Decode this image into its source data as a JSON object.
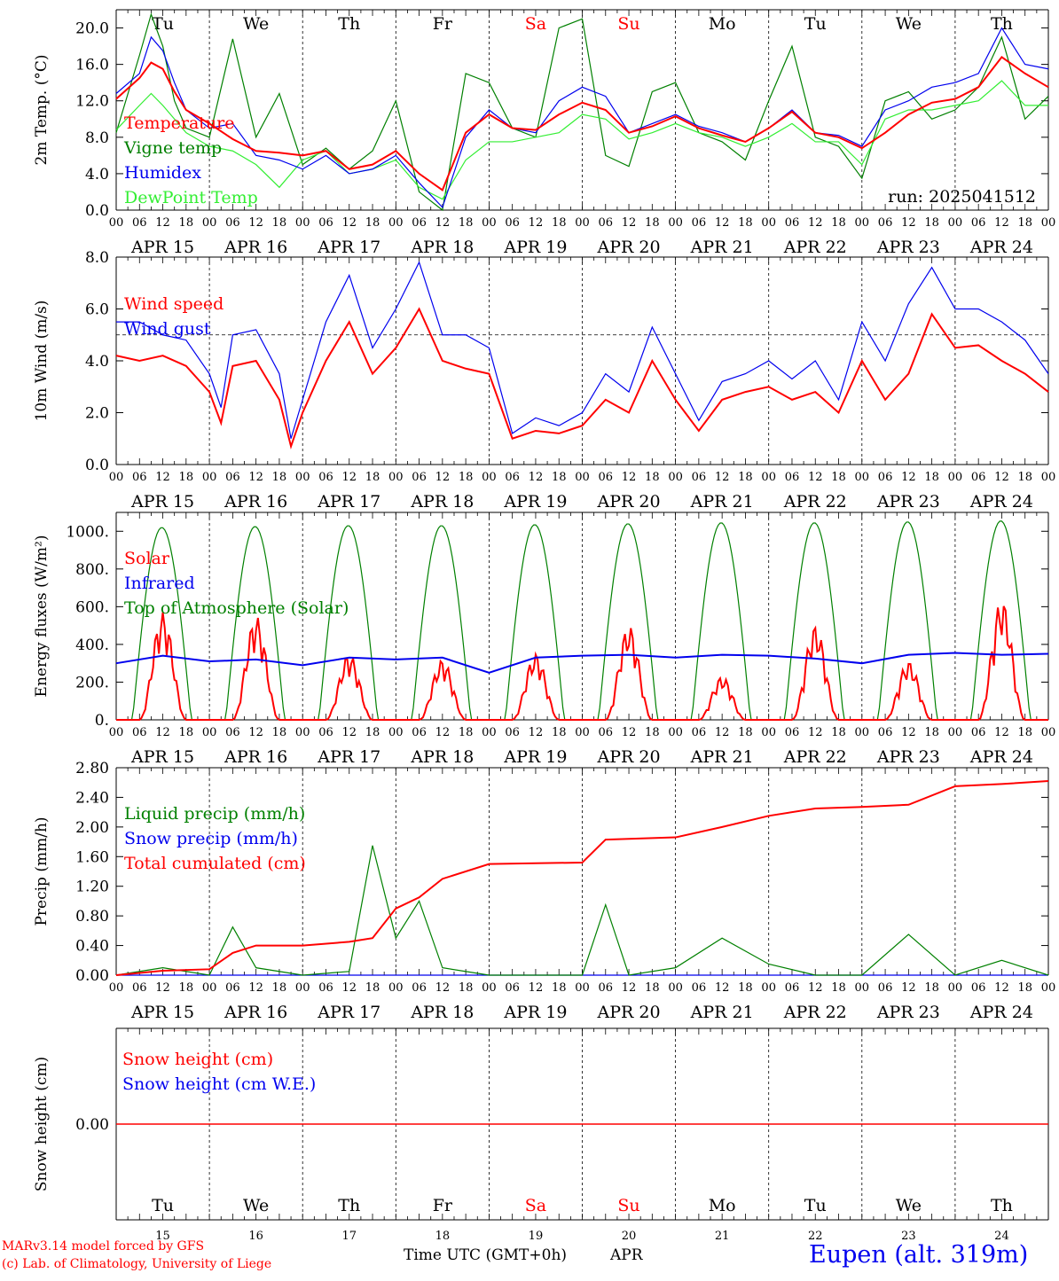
{
  "colors": {
    "red": "#ff0000",
    "green": "#008000",
    "lightgreen": "#33ee33",
    "blue": "#0000ee",
    "black": "#000000",
    "ref": "#000000"
  },
  "days": [
    "Tu",
    "We",
    "Th",
    "Fr",
    "Sa",
    "Su",
    "Mo",
    "Tu",
    "We",
    "Th"
  ],
  "weekend_days": [
    "Sa",
    "Su"
  ],
  "dates": [
    "APR 15",
    "APR 16",
    "APR 17",
    "APR 18",
    "APR 19",
    "APR 20",
    "APR 21",
    "APR 22",
    "APR 23",
    "APR 24"
  ],
  "day_numbers": [
    "15",
    "16",
    "17",
    "18",
    "19",
    "20",
    "21",
    "22",
    "23",
    "24"
  ],
  "hour_ticks": [
    "00",
    "06",
    "12",
    "18"
  ],
  "hour_end": "00",
  "footer": {
    "model_line": "MARv3.14 model forced by GFS",
    "lab_line": "(c) Lab. of Climatology, University of Liege",
    "xlabel": "Time UTC (GMT+0h)",
    "month": "APR",
    "station": "Eupen (alt. 319m)"
  },
  "chart_data": [
    {
      "type": "line",
      "ylabel": "2m Temp. (°C)",
      "ylim": [
        0,
        22
      ],
      "yticks": [
        "0.0",
        "4.0",
        "8.0",
        "12.0",
        "16.0",
        "20.0"
      ],
      "note": "run: 2025041512",
      "x_hours": [
        0,
        6,
        9,
        12,
        15,
        18,
        24,
        30,
        36,
        42,
        48,
        54,
        60,
        66,
        72,
        78,
        84,
        90,
        96,
        102,
        108,
        114,
        120,
        126,
        132,
        138,
        144,
        150,
        156,
        162,
        168,
        174,
        180,
        186,
        192,
        198,
        204,
        210,
        216,
        222,
        228,
        234,
        240
      ],
      "series": [
        {
          "name": "Temperature",
          "color": "#ff0000",
          "values": [
            12.2,
            14.5,
            16.2,
            15.5,
            13.0,
            11.0,
            9.5,
            7.8,
            6.5,
            6.3,
            6.0,
            6.5,
            4.5,
            5.0,
            6.5,
            4.0,
            2.2,
            8.5,
            10.5,
            9.0,
            8.8,
            10.5,
            11.8,
            11.0,
            8.5,
            9.2,
            10.3,
            9.0,
            8.2,
            7.5,
            9.0,
            10.8,
            8.5,
            8.0,
            6.8,
            8.5,
            10.5,
            11.8,
            12.2,
            13.5,
            16.8,
            15.0,
            13.5
          ]
        },
        {
          "name": "Vigne temp",
          "color": "#008000",
          "values": [
            8.5,
            17.0,
            21.5,
            18.0,
            12.0,
            9.0,
            8.0,
            18.8,
            8.0,
            12.8,
            5.0,
            6.8,
            4.5,
            6.5,
            12.0,
            2.0,
            -0.5,
            15.0,
            14.0,
            9.0,
            8.0,
            20.0,
            21.0,
            6.0,
            4.8,
            13.0,
            14.0,
            8.5,
            7.5,
            5.5,
            12.0,
            18.0,
            8.0,
            7.0,
            3.5,
            12.0,
            13.0,
            10.0,
            11.0,
            13.5,
            19.0,
            10.0,
            12.5
          ]
        },
        {
          "name": "Humidex",
          "color": "#0000ee",
          "values": [
            12.8,
            15.0,
            19.0,
            17.5,
            14.0,
            11.0,
            9.0,
            9.5,
            6.0,
            5.5,
            4.5,
            6.0,
            4.0,
            4.5,
            6.0,
            3.0,
            0.3,
            8.0,
            11.0,
            9.0,
            8.5,
            12.0,
            13.5,
            12.5,
            8.5,
            9.5,
            10.5,
            9.2,
            8.5,
            7.5,
            9.0,
            11.0,
            8.5,
            8.2,
            7.0,
            11.0,
            12.0,
            13.5,
            14.0,
            15.0,
            20.0,
            16.0,
            15.5
          ]
        },
        {
          "name": "DewPoint Temp",
          "color": "#33ee33",
          "values": [
            8.8,
            11.5,
            12.8,
            11.5,
            10.0,
            8.5,
            7.0,
            6.5,
            5.0,
            2.5,
            5.5,
            6.5,
            4.0,
            4.5,
            5.5,
            2.5,
            1.2,
            5.5,
            7.5,
            7.5,
            8.0,
            8.5,
            10.5,
            10.0,
            7.8,
            8.5,
            9.5,
            8.5,
            8.0,
            7.0,
            8.0,
            9.5,
            7.5,
            7.5,
            5.0,
            10.0,
            11.0,
            11.0,
            11.5,
            12.0,
            14.2,
            11.5,
            11.5
          ]
        }
      ]
    },
    {
      "type": "line",
      "ylabel": "10m Wind (m/s)",
      "ylim": [
        0,
        8
      ],
      "yticks": [
        "0.0",
        "2.0",
        "4.0",
        "6.0",
        "8.0"
      ],
      "ref_line": 5.0,
      "x_hours": [
        0,
        6,
        12,
        18,
        24,
        27,
        30,
        36,
        42,
        45,
        48,
        54,
        60,
        66,
        72,
        78,
        84,
        90,
        96,
        102,
        108,
        114,
        120,
        126,
        132,
        138,
        144,
        150,
        156,
        162,
        168,
        174,
        180,
        186,
        192,
        198,
        204,
        210,
        216,
        222,
        228,
        234,
        240
      ],
      "series": [
        {
          "name": "Wind speed",
          "color": "#ff0000",
          "values": [
            4.2,
            4.0,
            4.2,
            3.8,
            2.8,
            1.6,
            3.8,
            4.0,
            2.5,
            0.7,
            2.0,
            4.0,
            5.5,
            3.5,
            4.5,
            6.0,
            4.0,
            3.7,
            3.5,
            1.0,
            1.3,
            1.2,
            1.5,
            2.5,
            2.0,
            4.0,
            2.5,
            1.3,
            2.5,
            2.8,
            3.0,
            2.5,
            2.8,
            2.0,
            4.0,
            2.5,
            3.5,
            5.8,
            4.5,
            4.6,
            4.0,
            3.5,
            2.8
          ]
        },
        {
          "name": "Wind gust",
          "color": "#0000ee",
          "values": [
            5.5,
            5.5,
            5.0,
            4.8,
            3.5,
            2.2,
            5.0,
            5.2,
            3.5,
            1.0,
            2.5,
            5.5,
            7.3,
            4.5,
            6.0,
            7.8,
            5.0,
            5.0,
            4.5,
            1.2,
            1.8,
            1.5,
            2.0,
            3.5,
            2.8,
            5.3,
            3.5,
            1.7,
            3.2,
            3.5,
            4.0,
            3.3,
            4.0,
            2.5,
            5.5,
            4.0,
            6.2,
            7.6,
            6.0,
            6.0,
            5.5,
            4.8,
            3.5
          ]
        }
      ]
    },
    {
      "type": "line",
      "ylabel": "Energy fluxes (W/m²)",
      "ylim": [
        0,
        1100
      ],
      "yticks": [
        "0.",
        "200.",
        "400.",
        "600.",
        "800.",
        "1000."
      ],
      "solar_peaks": [
        570,
        550,
        350,
        320,
        350,
        500,
        230,
        500,
        310,
        640
      ],
      "toa_peaks": [
        1020,
        1025,
        1030,
        1030,
        1035,
        1040,
        1045,
        1045,
        1050,
        1055
      ],
      "infrared_x": [
        0,
        12,
        24,
        36,
        48,
        60,
        72,
        84,
        96,
        108,
        120,
        132,
        144,
        156,
        168,
        180,
        192,
        204,
        216,
        228,
        240
      ],
      "infrared": [
        300,
        340,
        310,
        320,
        290,
        330,
        320,
        330,
        250,
        330,
        340,
        345,
        330,
        345,
        340,
        325,
        300,
        345,
        355,
        345,
        350
      ],
      "series": [
        {
          "name": "Solar",
          "color": "#ff0000"
        },
        {
          "name": "Infrared",
          "color": "#0000ee"
        },
        {
          "name": "Top of Atmosphere (Solar)",
          "color": "#008000"
        }
      ]
    },
    {
      "type": "line",
      "ylabel": "Precip (mm/h)",
      "ylim": [
        0,
        2.8
      ],
      "yticks": [
        "0.00",
        "0.40",
        "0.80",
        "1.20",
        "1.60",
        "2.00",
        "2.40",
        "2.80"
      ],
      "x_hours": [
        0,
        12,
        24,
        30,
        36,
        48,
        60,
        66,
        72,
        78,
        84,
        96,
        108,
        120,
        126,
        132,
        144,
        156,
        168,
        180,
        192,
        204,
        216,
        228,
        240
      ],
      "series": [
        {
          "name": "Liquid precip (mm/h)",
          "color": "#008000",
          "values": [
            0.0,
            0.1,
            0.0,
            0.65,
            0.1,
            0.0,
            0.05,
            1.75,
            0.5,
            1.0,
            0.1,
            0.0,
            0.0,
            0.0,
            0.95,
            0.0,
            0.1,
            0.5,
            0.15,
            0.0,
            0.0,
            0.55,
            0.0,
            0.2,
            0.0
          ]
        },
        {
          "name": "Snow precip (mm/h)",
          "color": "#0000ee",
          "values": [
            0,
            0,
            0,
            0,
            0,
            0,
            0,
            0,
            0,
            0,
            0,
            0,
            0,
            0,
            0,
            0,
            0,
            0,
            0,
            0,
            0,
            0,
            0,
            0,
            0
          ]
        },
        {
          "name": "Total cumulated (cm)",
          "color": "#ff0000",
          "values": [
            0.0,
            0.06,
            0.08,
            0.3,
            0.4,
            0.4,
            0.45,
            0.5,
            0.9,
            1.05,
            1.3,
            1.5,
            1.51,
            1.52,
            1.83,
            1.84,
            1.86,
            2.0,
            2.15,
            2.25,
            2.27,
            2.3,
            2.55,
            2.58,
            2.62
          ]
        }
      ]
    },
    {
      "type": "line",
      "ylabel": "Snow height (cm)",
      "ylim": [
        -1,
        1
      ],
      "yticks": [
        "0.00"
      ],
      "series": [
        {
          "name": "Snow height (cm)",
          "color": "#ff0000",
          "values": [
            0,
            0
          ]
        },
        {
          "name": "Snow height (cm W.E.)",
          "color": "#0000ee",
          "values": [
            0,
            0
          ]
        }
      ]
    }
  ]
}
